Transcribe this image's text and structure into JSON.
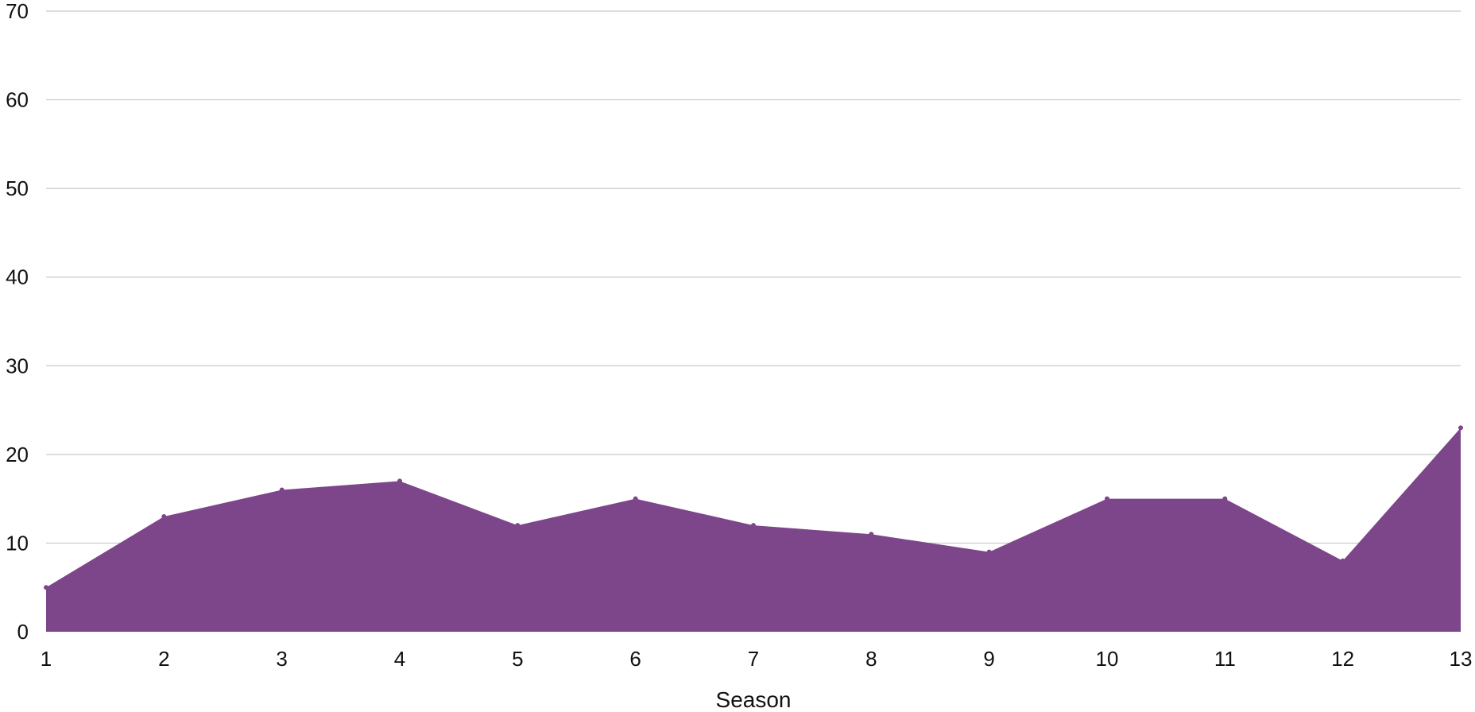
{
  "chart_data": {
    "type": "area",
    "title": "",
    "xlabel": "Season",
    "ylabel": "",
    "categories": [
      "1",
      "2",
      "3",
      "4",
      "5",
      "6",
      "7",
      "8",
      "9",
      "10",
      "11",
      "12",
      "13"
    ],
    "series": [
      {
        "values": [
          5,
          13,
          16,
          17,
          12,
          15,
          12,
          11,
          9,
          15,
          15,
          8,
          23
        ]
      }
    ],
    "ylim": [
      0,
      70
    ],
    "yticks": [
      0,
      10,
      20,
      30,
      40,
      50,
      60,
      70
    ],
    "grid": true,
    "legend": "none",
    "colors": {
      "area": "#7d468b",
      "grid": "#c8c8c8",
      "text": "#111111"
    }
  }
}
